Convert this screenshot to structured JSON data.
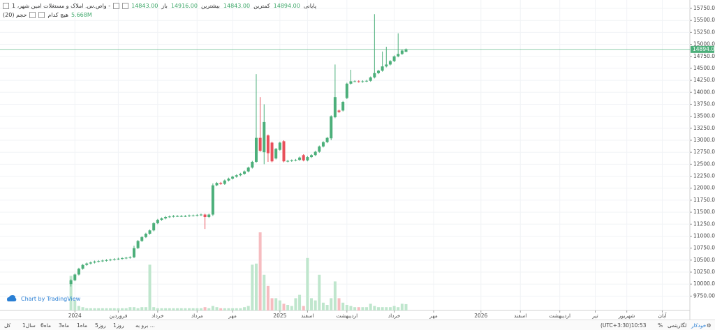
{
  "chart_data": {
    "type": "candlestick",
    "title": "واص.س. املاک و مستغلات امین شهر، 1 -",
    "legend_values": [
      {
        "label": "باز",
        "value": "14843.00"
      },
      {
        "label": "بیشترین",
        "value": "14916.00"
      },
      {
        "label": "کمترین",
        "value": "14843.00"
      },
      {
        "label": "پایانی",
        "value": "14894.00"
      }
    ],
    "volume_title": "حجم (20)",
    "volume_ma": "هیچ کدام",
    "volume_last_label": "5.668M",
    "last_price_label": "14894.00",
    "watermark": "Chart by TradingView",
    "up_color": "#4caf7a",
    "down_color": "#e8505b",
    "volume_up_color": "#bfe6cd",
    "volume_down_color": "#f6bcc0",
    "grid": true,
    "xlim": [
      -18,
      157
    ],
    "xticks": [
      {
        "value": 1,
        "label": "2024"
      },
      {
        "value": 12,
        "label": "فروردین"
      },
      {
        "value": 22,
        "label": "خرداد"
      },
      {
        "value": 32,
        "label": "مرداد"
      },
      {
        "value": 41,
        "label": "مهر"
      },
      {
        "value": 53,
        "label": "2025"
      },
      {
        "value": 60,
        "label": "اسفند"
      },
      {
        "value": 70,
        "label": "اردیبهشت"
      },
      {
        "value": 82,
        "label": "خرداد"
      },
      {
        "value": 92,
        "label": "مهر"
      },
      {
        "value": 104,
        "label": "2026"
      },
      {
        "value": 114,
        "label": "اسفند"
      },
      {
        "value": 124,
        "label": "اردیبهشت"
      },
      {
        "value": 133,
        "label": "تیر"
      },
      {
        "value": 141,
        "label": "شهریور"
      },
      {
        "value": 150,
        "label": "آبان"
      }
    ],
    "ylim": [
      9450,
      15925
    ],
    "yticks": [
      {
        "value": 9750,
        "label": "9750.00"
      },
      {
        "value": 10000,
        "label": "10000.00"
      },
      {
        "value": 10250,
        "label": "10250.00"
      },
      {
        "value": 10500,
        "label": "10500.00"
      },
      {
        "value": 10750,
        "label": "10750.00"
      },
      {
        "value": 11000,
        "label": "11000.00"
      },
      {
        "value": 11250,
        "label": "11250.00"
      },
      {
        "value": 11500,
        "label": "11500.00"
      },
      {
        "value": 11750,
        "label": "11750.00"
      },
      {
        "value": 12000,
        "label": "12000.00"
      },
      {
        "value": 12250,
        "label": "12250.00"
      },
      {
        "value": 12500,
        "label": "12500.00"
      },
      {
        "value": 12750,
        "label": "12750.00"
      },
      {
        "value": 13000,
        "label": "13000.00"
      },
      {
        "value": 13250,
        "label": "13250.00"
      },
      {
        "value": 13500,
        "label": "13500.00"
      },
      {
        "value": 13750,
        "label": "13750.00"
      },
      {
        "value": 14000,
        "label": "14000.00"
      },
      {
        "value": 14250,
        "label": "14250.00"
      },
      {
        "value": 14500,
        "label": "14500.00"
      },
      {
        "value": 14750,
        "label": "14750.00"
      },
      {
        "value": 15000,
        "label": "15000.00"
      },
      {
        "value": 15250,
        "label": "15250.00"
      },
      {
        "value": 15500,
        "label": "15500.00"
      },
      {
        "value": 15750,
        "label": "15750.00"
      }
    ],
    "vlim": [
      0,
      100
    ],
    "open": [
      10000,
      10080,
      10200,
      10320,
      10400,
      10430,
      10450,
      10470,
      10480,
      10490,
      10500,
      10510,
      10520,
      10530,
      10540,
      10550,
      10560,
      10750,
      10900,
      10980,
      11050,
      11120,
      11270,
      11340,
      11370,
      11400,
      11410,
      11420,
      11420,
      11420,
      11420,
      11430,
      11430,
      11440,
      11450,
      11400,
      11450,
      12060,
      12110,
      12090,
      12160,
      12200,
      12240,
      12270,
      12300,
      12350,
      12430,
      12550,
      13050,
      12750,
      13100,
      12950,
      12620,
      12800,
      12980,
      12560,
      12570,
      12580,
      12590,
      12690,
      12580,
      12650,
      12690,
      12760,
      12870,
      12960,
      13040,
      13480,
      13620,
      13620,
      13880,
      14180,
      14230,
      14230,
      14220,
      14230,
      14240,
      14310,
      14400,
      14450,
      14540,
      14580,
      14650,
      14750,
      14800,
      14843
    ],
    "high": [
      10100,
      10220,
      10340,
      10420,
      10450,
      10470,
      10490,
      10500,
      10510,
      10520,
      10530,
      10540,
      10550,
      10560,
      10570,
      10580,
      10800,
      10920,
      11000,
      11070,
      11140,
      11290,
      11360,
      11390,
      11420,
      11430,
      11440,
      11440,
      11440,
      11440,
      11450,
      11450,
      11460,
      11470,
      11470,
      11470,
      12100,
      12130,
      12130,
      12180,
      12220,
      12260,
      12290,
      12320,
      12370,
      12450,
      12570,
      14380,
      13900,
      13750,
      13120,
      12970,
      12840,
      12970,
      13000,
      12590,
      12600,
      12610,
      12660,
      12710,
      12670,
      12710,
      12780,
      12890,
      12980,
      13070,
      13520,
      14580,
      13640,
      13820,
      14200,
      14470,
      14250,
      14250,
      14250,
      14260,
      14330,
      15630,
      14470,
      14850,
      14950,
      14670,
      14770,
      15230,
      14890,
      14916
    ],
    "low": [
      9950,
      10060,
      10180,
      10300,
      10380,
      10410,
      10430,
      10450,
      10460,
      10470,
      10480,
      10490,
      10500,
      10510,
      10520,
      10530,
      10540,
      10730,
      10880,
      10960,
      11030,
      11100,
      11250,
      11320,
      11350,
      11380,
      11390,
      11400,
      11400,
      11400,
      11400,
      11410,
      11410,
      11420,
      11150,
      11380,
      11420,
      12040,
      12070,
      12070,
      12140,
      12180,
      12220,
      12250,
      12280,
      12330,
      12410,
      12530,
      12760,
      12500,
      12550,
      12540,
      12600,
      12780,
      12540,
      12540,
      12550,
      12560,
      12570,
      12560,
      12560,
      12630,
      12670,
      12740,
      12850,
      12940,
      13000,
      13460,
      13570,
      13600,
      13860,
      14160,
      14210,
      14200,
      14200,
      14210,
      14220,
      14290,
      14380,
      14430,
      14520,
      14560,
      14630,
      14730,
      14780,
      14843
    ],
    "close": [
      10080,
      10200,
      10320,
      10400,
      10430,
      10450,
      10470,
      10480,
      10490,
      10500,
      10510,
      10520,
      10530,
      10540,
      10550,
      10560,
      10750,
      10900,
      10980,
      11050,
      11120,
      11270,
      11340,
      11370,
      11400,
      11410,
      11420,
      11420,
      11420,
      11420,
      11430,
      11430,
      11440,
      11450,
      11400,
      11450,
      12060,
      12110,
      12090,
      12160,
      12200,
      12240,
      12270,
      12300,
      12350,
      12430,
      12550,
      13050,
      12780,
      13380,
      12730,
      12560,
      12820,
      12950,
      12560,
      12570,
      12580,
      12590,
      12640,
      12580,
      12650,
      12690,
      12760,
      12870,
      12960,
      13050,
      13500,
      13900,
      13590,
      13800,
      14180,
      14230,
      14230,
      14220,
      14230,
      14240,
      14310,
      14400,
      14450,
      14540,
      14580,
      14650,
      14750,
      14800,
      14870,
      14894
    ],
    "volume": [
      31,
      9,
      4,
      3,
      2,
      2,
      2,
      2,
      2,
      2,
      2,
      2,
      2,
      2,
      2,
      3,
      3,
      2,
      3,
      3,
      41,
      3,
      2,
      2,
      2,
      2,
      2,
      2,
      2,
      2,
      2,
      2,
      2,
      2,
      3,
      2,
      4,
      3,
      2,
      2,
      2,
      2,
      2,
      2,
      3,
      4,
      41,
      42,
      70,
      32,
      22,
      11,
      11,
      9,
      6,
      5,
      4,
      11,
      14,
      4,
      47,
      11,
      9,
      32,
      7,
      5,
      11,
      26,
      11,
      7,
      5,
      4,
      3,
      3,
      3,
      3,
      6,
      4,
      3,
      3,
      3,
      3,
      4,
      3,
      6,
      5.668
    ],
    "toolbar": {
      "ranges": [
        "کل",
        "1سال",
        "6ماه",
        "3ماه",
        "1ماه",
        "5روز",
        "1روز"
      ],
      "goto": "برو به ...",
      "time": "(UTC+3:30)10:53",
      "percent": "%",
      "log": "لگاریتمی",
      "auto": "خودکار"
    }
  }
}
